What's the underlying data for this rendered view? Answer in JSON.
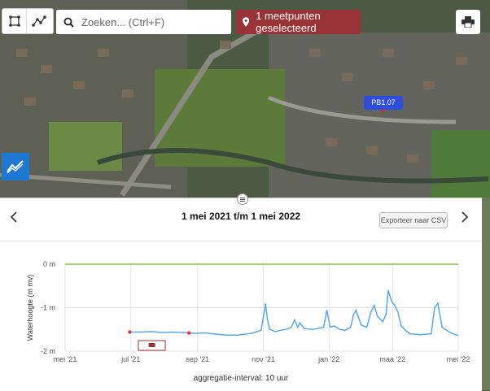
{
  "toolbar": {
    "tool1_icon": "polygon-select-icon",
    "tool2_icon": "line-select-icon",
    "print_icon": "printer-icon"
  },
  "search": {
    "placeholder": "Zoeken... (Ctrl+F)",
    "icon": "search-icon"
  },
  "selection": {
    "label": "1 meetpunten geselecteerd",
    "icon": "map-pin-icon",
    "color": "#9a3337"
  },
  "map": {
    "marker_label": "PB1.07",
    "marker_color": "#2f4de0"
  },
  "panel": {
    "date_range": "1 mei 2021 t/m 1 mei 2022",
    "export_label": "Exporteer naar CSV",
    "aggregation": "aggregatie-interval: 10 uur",
    "prev_icon": "chevron-left-icon",
    "next_icon": "chevron-right-icon",
    "handle_icon": "drag-handle-icon"
  },
  "chart_data": {
    "type": "line",
    "ylabel": "Waterhoogte (m mv)",
    "ylim": [
      -2,
      0
    ],
    "yticks": [
      {
        "v": 0,
        "label": "0 m"
      },
      {
        "v": -1,
        "label": "-1 m"
      },
      {
        "v": -2,
        "label": "-2 m"
      }
    ],
    "xlim": [
      0,
      365
    ],
    "xticks": [
      {
        "v": 0,
        "label": "mei '21"
      },
      {
        "v": 61,
        "label": "jul '21"
      },
      {
        "v": 123,
        "label": "sep '21"
      },
      {
        "v": 184,
        "label": "nov '21"
      },
      {
        "v": 245,
        "label": "jan '22"
      },
      {
        "v": 304,
        "label": "maa '22"
      },
      {
        "v": 365,
        "label": "mei '22"
      }
    ],
    "reference_line": {
      "value": 0,
      "color": "#8bc34a"
    },
    "series_color": "#5aa7e8",
    "x": [
      60,
      70,
      80,
      90,
      100,
      110,
      120,
      130,
      140,
      150,
      160,
      170,
      175,
      178,
      182,
      185,
      186,
      188,
      190,
      195,
      200,
      205,
      210,
      213,
      216,
      218,
      222,
      230,
      240,
      243,
      246,
      250,
      255,
      260,
      265,
      268,
      270,
      275,
      280,
      284,
      287,
      290,
      295,
      298,
      300,
      303,
      306,
      309,
      312,
      316,
      320,
      330,
      340,
      343,
      346,
      350,
      356,
      360,
      365
    ],
    "y": [
      -1.56,
      -1.56,
      -1.55,
      -1.57,
      -1.56,
      -1.57,
      -1.59,
      -1.58,
      -1.61,
      -1.63,
      -1.63,
      -1.6,
      -1.58,
      -1.55,
      -1.52,
      -1.08,
      -0.9,
      -1.3,
      -1.5,
      -1.55,
      -1.52,
      -1.5,
      -1.45,
      -1.28,
      -1.45,
      -1.35,
      -1.48,
      -1.5,
      -1.45,
      -1.05,
      -1.45,
      -1.42,
      -1.5,
      -1.52,
      -1.45,
      -1.15,
      -1.06,
      -1.4,
      -1.45,
      -1.1,
      -0.95,
      -1.2,
      -1.32,
      -1.15,
      -0.6,
      -0.85,
      -0.95,
      -1.1,
      -1.42,
      -1.52,
      -1.6,
      -1.62,
      -1.6,
      -1.0,
      -0.9,
      -1.45,
      -1.55,
      -1.6,
      -1.64
    ],
    "annotation_points": [
      {
        "x": 60,
        "y": -1.56
      },
      {
        "x": 115,
        "y": -1.58
      }
    ],
    "note_range": [
      68,
      93
    ]
  }
}
